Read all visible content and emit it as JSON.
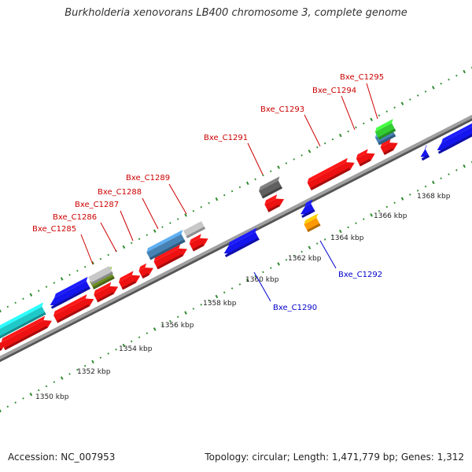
{
  "title": "Burkholderia xenovorans LB400 chromosome 3, complete genome",
  "footer": {
    "accession": "Accession: NC_007953",
    "summary": "Topology: circular; Length: 1,471,779 bp; Genes: 1,312"
  },
  "colors": {
    "backbone": "#909090",
    "tick": "#2e8b2e",
    "forward_label": "#cc0000",
    "reverse_label": "#0000cc",
    "red": "#ee1111",
    "blue": "#1515ee",
    "cyan": "#20c8c8",
    "steelblue": "#4682b4",
    "olive": "#6b8e23",
    "lightgray": "#c8c8c8",
    "darkgray": "#606060",
    "orange": "#ff9900",
    "green": "#33cc33"
  },
  "scale_labels": [
    "1350 kbp",
    "1352 kbp",
    "1354 kbp",
    "1356 kbp",
    "1358 kbp",
    "1360 kbp",
    "1362 kbp",
    "1364 kbp",
    "1366 kbp",
    "1368 kbp"
  ],
  "gene_labels": [
    {
      "text": "Bxe_C1285",
      "strand": "forward"
    },
    {
      "text": "Bxe_C1286",
      "strand": "forward"
    },
    {
      "text": "Bxe_C1287",
      "strand": "forward"
    },
    {
      "text": "Bxe_C1288",
      "strand": "forward"
    },
    {
      "text": "Bxe_C1289",
      "strand": "forward"
    },
    {
      "text": "Bxe_C1291",
      "strand": "forward"
    },
    {
      "text": "Bxe_C1293",
      "strand": "forward"
    },
    {
      "text": "Bxe_C1294",
      "strand": "forward"
    },
    {
      "text": "Bxe_C1295",
      "strand": "forward"
    },
    {
      "text": "Bxe_C1292",
      "strand": "reverse"
    },
    {
      "text": "Bxe_C1290",
      "strand": "reverse"
    }
  ]
}
